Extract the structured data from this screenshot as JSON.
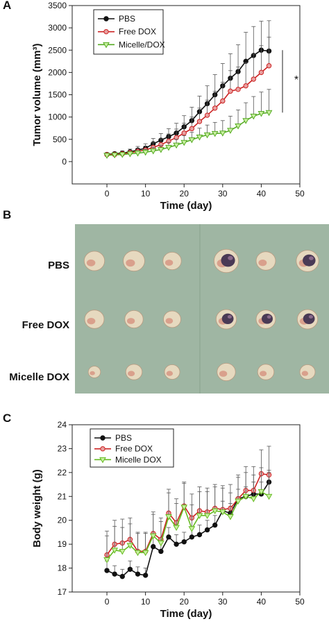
{
  "panels": {
    "a": "A",
    "b": "B",
    "c": "C"
  },
  "chart_data": [
    {
      "type": "line",
      "panel": "A",
      "xlabel": "Time (day)",
      "ylabel": "Tumor volume (mm³)",
      "xlim": [
        -9,
        50
      ],
      "ylim": [
        -500,
        3500
      ],
      "xticks": [
        0,
        10,
        20,
        30,
        40,
        50
      ],
      "yticks": [
        0,
        500,
        1000,
        1500,
        2000,
        2500,
        3000,
        3500
      ],
      "legend": "top-left",
      "annotation": "*",
      "x": [
        0,
        2,
        4,
        6,
        8,
        10,
        12,
        14,
        16,
        18,
        20,
        22,
        24,
        26,
        28,
        30,
        32,
        34,
        36,
        38,
        40,
        42
      ],
      "series": [
        {
          "name": "PBS",
          "color": "#111111",
          "marker": "circle",
          "values": [
            160,
            175,
            190,
            220,
            260,
            300,
            400,
            480,
            560,
            640,
            780,
            920,
            1120,
            1300,
            1500,
            1700,
            1870,
            2020,
            2250,
            2380,
            2500,
            2480
          ],
          "errors": [
            40,
            40,
            50,
            60,
            80,
            100,
            120,
            150,
            180,
            220,
            250,
            300,
            350,
            400,
            450,
            500,
            550,
            600,
            650,
            650,
            650,
            680
          ]
        },
        {
          "name": "Free DOX",
          "color": "#cc2222",
          "marker": "circle",
          "values": [
            155,
            160,
            175,
            200,
            230,
            260,
            320,
            380,
            460,
            540,
            640,
            740,
            900,
            1040,
            1200,
            1360,
            1580,
            1620,
            1700,
            1850,
            2000,
            2150
          ],
          "errors": [
            40,
            40,
            50,
            55,
            70,
            90,
            110,
            130,
            160,
            190,
            220,
            260,
            300,
            340,
            380,
            420,
            460,
            500,
            520,
            560,
            600,
            640
          ]
        },
        {
          "name": "Micelle/DOX",
          "color": "#55aa22",
          "marker": "triangle-down",
          "values": [
            140,
            150,
            160,
            175,
            190,
            210,
            240,
            270,
            320,
            370,
            430,
            490,
            550,
            600,
            630,
            640,
            700,
            800,
            920,
            1020,
            1080,
            1100
          ],
          "errors": [
            30,
            30,
            40,
            45,
            55,
            65,
            80,
            90,
            110,
            130,
            150,
            170,
            200,
            220,
            250,
            280,
            320,
            360,
            400,
            440,
            480,
            520
          ]
        }
      ]
    },
    {
      "type": "line",
      "panel": "C",
      "xlabel": "Time (day)",
      "ylabel": "Body weight (g)",
      "xlim": [
        -9,
        50
      ],
      "ylim": [
        17,
        24
      ],
      "xticks": [
        0,
        10,
        20,
        30,
        40,
        50
      ],
      "yticks": [
        17,
        18,
        19,
        20,
        21,
        22,
        23,
        24
      ],
      "legend": "top-left",
      "x": [
        0,
        2,
        4,
        6,
        8,
        10,
        12,
        14,
        16,
        18,
        20,
        22,
        24,
        26,
        28,
        30,
        32,
        34,
        36,
        38,
        40,
        42
      ],
      "series": [
        {
          "name": "PBS",
          "color": "#111111",
          "marker": "circle",
          "values": [
            17.9,
            17.75,
            17.65,
            17.95,
            17.75,
            17.7,
            18.9,
            18.7,
            19.3,
            19.0,
            19.1,
            19.3,
            19.4,
            19.6,
            19.8,
            20.4,
            20.3,
            20.9,
            21.0,
            21.1,
            21.1,
            21.6
          ],
          "errors": [
            0.4,
            0.35,
            0.3,
            0.35,
            0.3,
            0.3,
            0.4,
            0.4,
            0.4,
            0.4,
            0.4,
            0.4,
            0.4,
            0.4,
            0.4,
            0.4,
            0.4,
            0.4,
            0.4,
            0.5,
            0.5,
            0.5
          ]
        },
        {
          "name": "Free DOX",
          "color": "#cc2222",
          "marker": "circle",
          "values": [
            18.55,
            19.0,
            19.05,
            19.2,
            18.7,
            18.7,
            19.45,
            19.2,
            20.3,
            19.9,
            20.6,
            20.1,
            20.4,
            20.35,
            20.5,
            20.45,
            20.5,
            20.9,
            21.25,
            21.25,
            21.95,
            21.9
          ],
          "errors": [
            1.0,
            1.0,
            1.0,
            0.9,
            0.8,
            0.8,
            0.9,
            0.9,
            1.0,
            1.0,
            1.0,
            1.0,
            1.0,
            1.0,
            1.0,
            1.0,
            1.0,
            1.0,
            1.0,
            1.0,
            1.0,
            1.2
          ]
        },
        {
          "name": "Micelle DOX",
          "color": "#66bb22",
          "marker": "triangle-down",
          "values": [
            18.35,
            18.75,
            18.7,
            18.95,
            18.65,
            18.65,
            19.35,
            19.05,
            20.15,
            19.7,
            20.55,
            19.65,
            20.2,
            20.2,
            20.4,
            20.35,
            20.15,
            20.8,
            21.0,
            20.9,
            21.2,
            21.0
          ],
          "errors": [
            1.0,
            1.0,
            1.0,
            0.9,
            0.8,
            0.8,
            0.9,
            0.9,
            1.0,
            1.0,
            1.0,
            1.0,
            1.0,
            1.0,
            1.0,
            1.0,
            1.0,
            1.0,
            1.0,
            1.0,
            1.0,
            1.0
          ]
        }
      ]
    }
  ],
  "photo": {
    "row_labels": [
      "PBS",
      "Free DOX",
      "Micelle DOX"
    ],
    "background_color": "#9fb6a3",
    "tumors": [
      [
        {
          "tone": "pale",
          "size": 1.0
        },
        {
          "tone": "pale",
          "size": 1.05
        },
        {
          "tone": "pale",
          "size": 0.9
        },
        {
          "tone": "dark",
          "size": 1.2
        },
        {
          "tone": "pale",
          "size": 0.95
        },
        {
          "tone": "dark",
          "size": 1.1
        }
      ],
      [
        {
          "tone": "pale",
          "size": 0.95
        },
        {
          "tone": "pale",
          "size": 0.9
        },
        {
          "tone": "pale",
          "size": 0.85
        },
        {
          "tone": "dark",
          "size": 1.0
        },
        {
          "tone": "dark",
          "size": 0.95
        },
        {
          "tone": "dark",
          "size": 1.0
        }
      ],
      [
        {
          "tone": "pale",
          "size": 0.6
        },
        {
          "tone": "pale",
          "size": 0.8
        },
        {
          "tone": "pale",
          "size": 0.75
        },
        {
          "tone": "pale",
          "size": 0.9
        },
        {
          "tone": "pale",
          "size": 0.8
        },
        {
          "tone": "pale",
          "size": 0.75
        }
      ]
    ]
  }
}
